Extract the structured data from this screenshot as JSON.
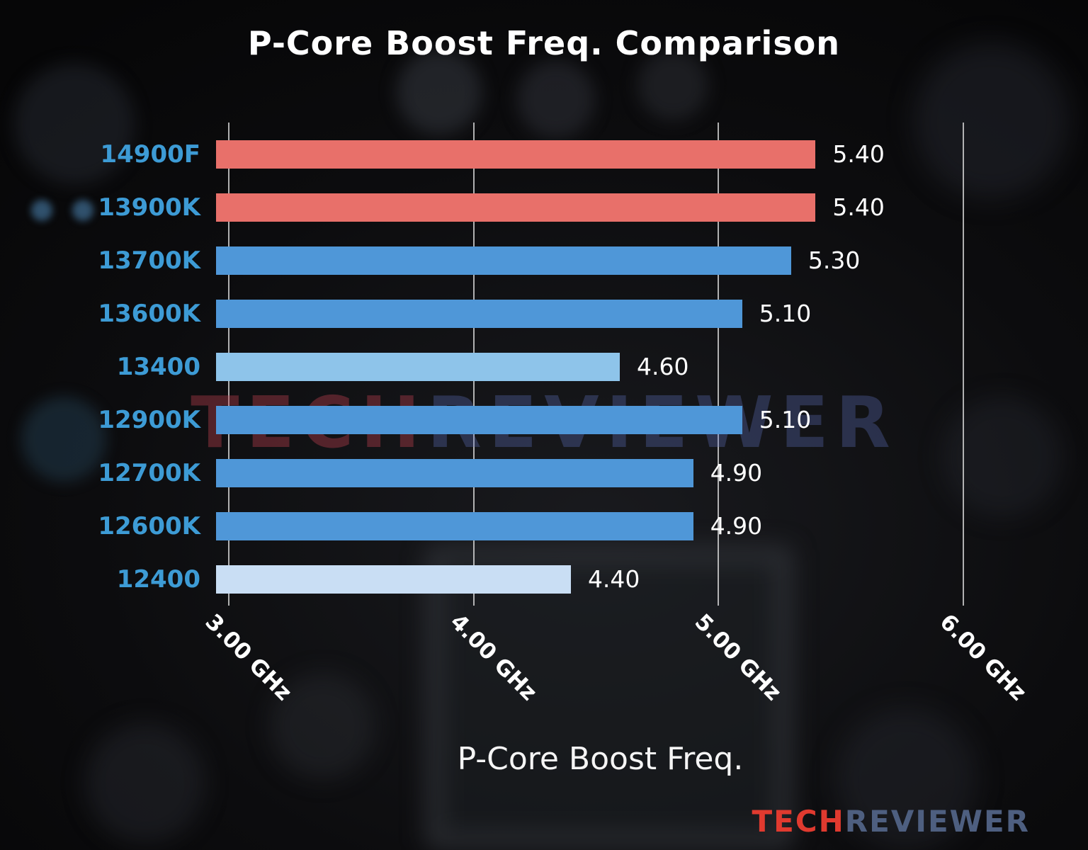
{
  "chart_data": {
    "type": "bar",
    "orientation": "horizontal",
    "title": "P-Core Boost Freq. Comparison",
    "xlabel": "P-Core Boost Freq.",
    "ylabel": "",
    "categories": [
      "14900F",
      "13900K",
      "13700K",
      "13600K",
      "13400",
      "12900K",
      "12700K",
      "12600K",
      "12400"
    ],
    "values": [
      5.4,
      5.4,
      5.3,
      5.1,
      4.6,
      5.1,
      4.9,
      4.9,
      4.4
    ],
    "value_labels": [
      "5.40",
      "5.40",
      "5.30",
      "5.10",
      "4.60",
      "5.10",
      "4.90",
      "4.90",
      "4.40"
    ],
    "bar_colors": [
      "#e8706a",
      "#e8706a",
      "#4f97d8",
      "#4f97d8",
      "#8ec4ea",
      "#4f97d8",
      "#4f97d8",
      "#4f97d8",
      "#c9def4"
    ],
    "category_label_color": "#3d9bd5",
    "x_ticks": [
      {
        "value": 3,
        "label": "3.00 GHz"
      },
      {
        "value": 4,
        "label": "4.00 GHz"
      },
      {
        "value": 5,
        "label": "5.00 GHz"
      },
      {
        "value": 6,
        "label": "6.00 GHz"
      }
    ],
    "xlim": [
      2.95,
      6.38
    ],
    "grid": true,
    "gridline_color": "#d9d9d9",
    "legend": "none"
  },
  "watermark": {
    "tech": "TECH",
    "reviewer": "REVIEWER"
  },
  "logo": {
    "tech": "TECH",
    "reviewer": "REVIEWER",
    "tech_color": "#e03a2f",
    "reviewer_color": "#4e5f80"
  }
}
